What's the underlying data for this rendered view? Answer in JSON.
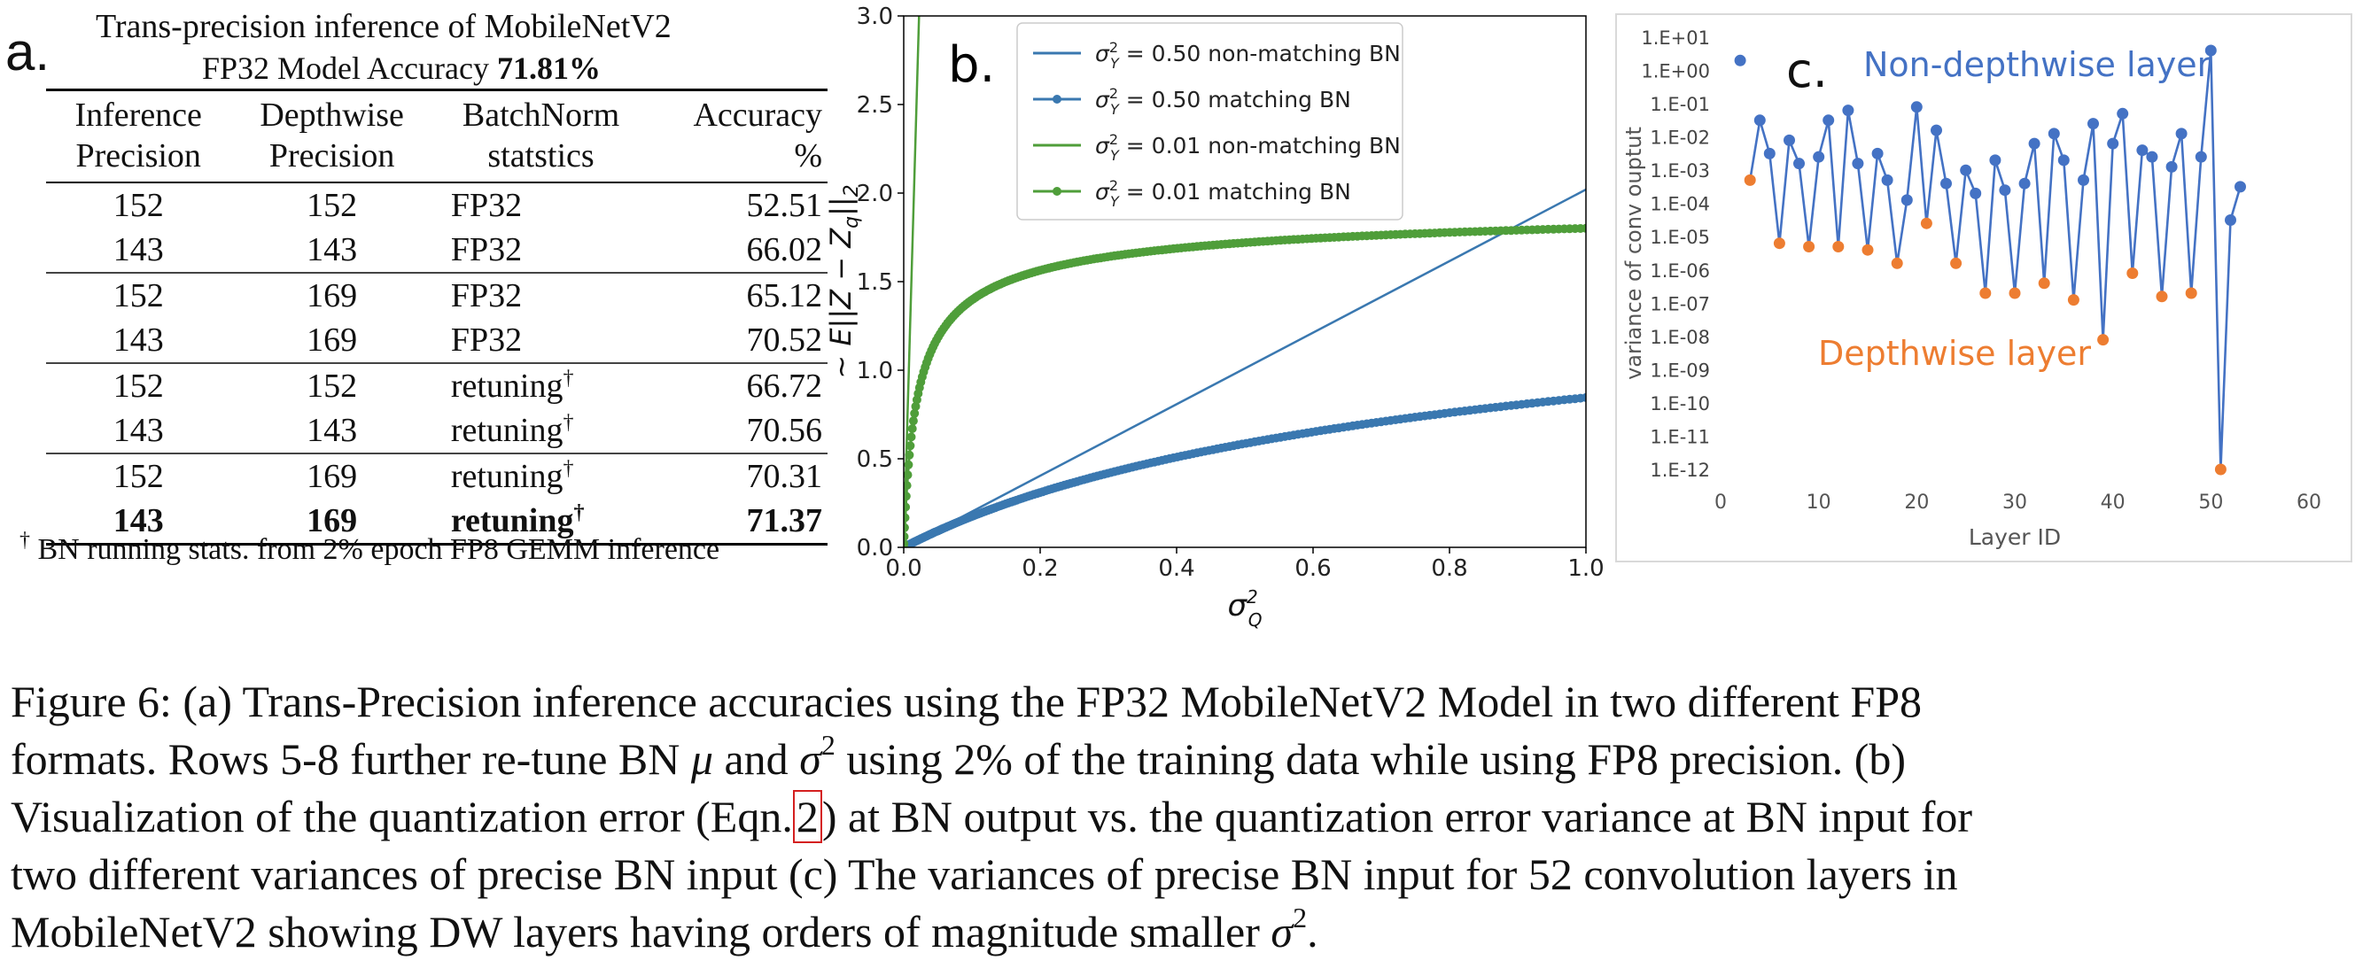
{
  "panel_a": {
    "letter": "a.",
    "title": "Trans-precision inference of MobileNetV2",
    "subtitle_prefix": "FP32 Model Accuracy",
    "subtitle_value": "71.81%",
    "headers": [
      [
        "Inference",
        "Precision"
      ],
      [
        "Depthwise",
        "Precision"
      ],
      [
        "BatchNorm",
        "statstics"
      ],
      [
        "Accuracy",
        "%"
      ]
    ],
    "rows": [
      {
        "inference": "152",
        "depthwise": "152",
        "bn": "FP32",
        "accuracy": "52.51",
        "dagger": ""
      },
      {
        "inference": "143",
        "depthwise": "143",
        "bn": "FP32",
        "accuracy": "66.02",
        "dagger": ""
      },
      {
        "inference": "152",
        "depthwise": "169",
        "bn": "FP32",
        "accuracy": "65.12",
        "dagger": ""
      },
      {
        "inference": "143",
        "depthwise": "169",
        "bn": "FP32",
        "accuracy": "70.52",
        "dagger": ""
      },
      {
        "inference": "152",
        "depthwise": "152",
        "bn": "retuning",
        "accuracy": "66.72",
        "dagger": "†"
      },
      {
        "inference": "143",
        "depthwise": "143",
        "bn": "retuning",
        "accuracy": "70.56",
        "dagger": "†"
      },
      {
        "inference": "152",
        "depthwise": "169",
        "bn": "retuning",
        "accuracy": "70.31",
        "dagger": "†"
      },
      {
        "inference": "143",
        "depthwise": "169",
        "bn": "retuning",
        "accuracy": "71.37",
        "dagger": "†"
      }
    ],
    "footnote_mark": "†",
    "footnote": "BN running stats. from 2% epoch FP8 GEMM inference"
  },
  "chart_data": [
    {
      "type": "line",
      "panel": "b.",
      "xlabel": "σ²_Q",
      "ylabel": "~ E||Z − Z_q||₂",
      "xlim": [
        0.0,
        1.0
      ],
      "ylim": [
        0.0,
        3.0
      ],
      "xticks": [
        "0.0",
        "0.2",
        "0.4",
        "0.6",
        "0.8",
        "1.0"
      ],
      "yticks": [
        "0.0",
        "0.5",
        "1.0",
        "1.5",
        "2.0",
        "2.5",
        "3.0"
      ],
      "legend_position": "top-right",
      "series": [
        {
          "name": "σ²_Y = 0.50 non-matching BN",
          "sigma_y2": 0.5,
          "kind": "non-matching",
          "marker": false,
          "color": "#3a78b0",
          "x": [
            0.0,
            1.0
          ],
          "y": [
            0.0,
            2.02
          ]
        },
        {
          "name": "σ²_Y = 0.50 matching BN",
          "sigma_y2": 0.5,
          "kind": "matching",
          "marker": true,
          "color": "#3a78b0",
          "formula": "2 - 2*sqrt(s/(s+x))"
        },
        {
          "name": "σ²_Y = 0.01 non-matching BN",
          "sigma_y2": 0.01,
          "kind": "non-matching",
          "marker": false,
          "color": "#4f9e3a",
          "x": [
            0.0,
            0.0225
          ],
          "y": [
            0.0,
            3.0
          ]
        },
        {
          "name": "σ²_Y = 0.01 matching BN",
          "sigma_y2": 0.01,
          "kind": "matching",
          "marker": true,
          "color": "#4f9e3a",
          "formula": "2 - 2*sqrt(s/(s+x))"
        }
      ],
      "legend": [
        {
          "prefix": "σ",
          "sub": "Y",
          "sup": "2",
          "rest": " = 0.50 non-matching BN"
        },
        {
          "prefix": "σ",
          "sub": "Y",
          "sup": "2",
          "rest": " = 0.50 matching BN"
        },
        {
          "prefix": "σ",
          "sub": "Y",
          "sup": "2",
          "rest": " = 0.01 non-matching BN"
        },
        {
          "prefix": "σ",
          "sub": "Y",
          "sup": "2",
          "rest": " = 0.01 matching BN"
        }
      ]
    },
    {
      "type": "line",
      "panel": "c.",
      "xlabel": "Layer ID",
      "ylabel": "variance of conv ouptut",
      "y_scale": "log",
      "xlim": [
        0,
        60
      ],
      "ylim_exp": [
        -12,
        1
      ],
      "xticks": [
        "0",
        "10",
        "20",
        "30",
        "40",
        "50",
        "60"
      ],
      "yticks": [
        "1.E-12",
        "1.E-11",
        "1.E-10",
        "1.E-09",
        "1.E-08",
        "1.E-07",
        "1.E-06",
        "1.E-05",
        "1.E-04",
        "1.E-03",
        "1.E-02",
        "1.E-01",
        "1.E+00",
        "1.E+01"
      ],
      "annotation_top": "Non-depthwise layer",
      "annotation_bottom": "Depthwise layer",
      "series_color": "#4472c4",
      "depthwise_color": "#ed7d31",
      "layers": [
        {
          "id": 2,
          "exp": 0.3,
          "dw": false
        },
        {
          "id": 3,
          "exp": -3.3,
          "dw": true
        },
        {
          "id": 4,
          "exp": -1.5,
          "dw": false
        },
        {
          "id": 5,
          "exp": -2.5,
          "dw": false
        },
        {
          "id": 6,
          "exp": -5.2,
          "dw": true
        },
        {
          "id": 7,
          "exp": -2.1,
          "dw": false
        },
        {
          "id": 8,
          "exp": -2.8,
          "dw": false
        },
        {
          "id": 9,
          "exp": -5.3,
          "dw": true
        },
        {
          "id": 10,
          "exp": -2.6,
          "dw": false
        },
        {
          "id": 11,
          "exp": -1.5,
          "dw": false
        },
        {
          "id": 12,
          "exp": -5.3,
          "dw": true
        },
        {
          "id": 13,
          "exp": -1.2,
          "dw": false
        },
        {
          "id": 14,
          "exp": -2.8,
          "dw": false
        },
        {
          "id": 15,
          "exp": -5.4,
          "dw": true
        },
        {
          "id": 16,
          "exp": -2.5,
          "dw": false
        },
        {
          "id": 17,
          "exp": -3.3,
          "dw": false
        },
        {
          "id": 18,
          "exp": -5.8,
          "dw": true
        },
        {
          "id": 19,
          "exp": -3.9,
          "dw": false
        },
        {
          "id": 20,
          "exp": -1.1,
          "dw": false
        },
        {
          "id": 21,
          "exp": -4.6,
          "dw": true
        },
        {
          "id": 22,
          "exp": -1.8,
          "dw": false
        },
        {
          "id": 23,
          "exp": -3.4,
          "dw": false
        },
        {
          "id": 24,
          "exp": -5.8,
          "dw": true
        },
        {
          "id": 25,
          "exp": -3.0,
          "dw": false
        },
        {
          "id": 26,
          "exp": -3.7,
          "dw": false
        },
        {
          "id": 27,
          "exp": -6.7,
          "dw": true
        },
        {
          "id": 28,
          "exp": -2.7,
          "dw": false
        },
        {
          "id": 29,
          "exp": -3.6,
          "dw": false
        },
        {
          "id": 30,
          "exp": -6.7,
          "dw": true
        },
        {
          "id": 31,
          "exp": -3.4,
          "dw": false
        },
        {
          "id": 32,
          "exp": -2.2,
          "dw": false
        },
        {
          "id": 33,
          "exp": -6.4,
          "dw": true
        },
        {
          "id": 34,
          "exp": -1.9,
          "dw": false
        },
        {
          "id": 35,
          "exp": -2.7,
          "dw": false
        },
        {
          "id": 36,
          "exp": -6.9,
          "dw": true
        },
        {
          "id": 37,
          "exp": -3.3,
          "dw": false
        },
        {
          "id": 38,
          "exp": -1.6,
          "dw": false
        },
        {
          "id": 39,
          "exp": -8.1,
          "dw": true
        },
        {
          "id": 40,
          "exp": -2.2,
          "dw": false
        },
        {
          "id": 41,
          "exp": -1.3,
          "dw": false
        },
        {
          "id": 42,
          "exp": -6.1,
          "dw": true
        },
        {
          "id": 43,
          "exp": -2.4,
          "dw": false
        },
        {
          "id": 44,
          "exp": -2.6,
          "dw": false
        },
        {
          "id": 45,
          "exp": -6.8,
          "dw": true
        },
        {
          "id": 46,
          "exp": -2.9,
          "dw": false
        },
        {
          "id": 47,
          "exp": -1.9,
          "dw": false
        },
        {
          "id": 48,
          "exp": -6.7,
          "dw": true
        },
        {
          "id": 49,
          "exp": -2.6,
          "dw": false
        },
        {
          "id": 50,
          "exp": 0.6,
          "dw": false
        },
        {
          "id": 51,
          "exp": -12.0,
          "dw": true
        },
        {
          "id": 52,
          "exp": -4.5,
          "dw": false
        },
        {
          "id": 53,
          "exp": -3.5,
          "dw": false
        }
      ],
      "isolated_point": {
        "id": 2,
        "exp": 0.3
      }
    }
  ],
  "caption": {
    "line1_a": "Figure 6: (a) Trans-Precision inference accuracies using the FP32 MobileNetV2 Model in two different FP8",
    "line2_a": "formats. Rows 5-8 further re-tune BN",
    "line2_mu": "μ",
    "line2_b": "and",
    "line2_sigma": "σ",
    "line2_c": "using 2% of the training data while using FP8 precision. (b)",
    "line3_a": "Visualization of the quantization error (Eqn.",
    "line3_ref": "2",
    "line3_b": ") at BN output vs. the quantization error variance at BN input for",
    "line4": "two different variances of precise BN input (c) The variances of precise BN input for 52 convolution layers in",
    "line5_a": "MobileNetV2 showing DW layers having orders of magnitude smaller",
    "line5_sigma": "σ",
    "line5_b": "."
  }
}
